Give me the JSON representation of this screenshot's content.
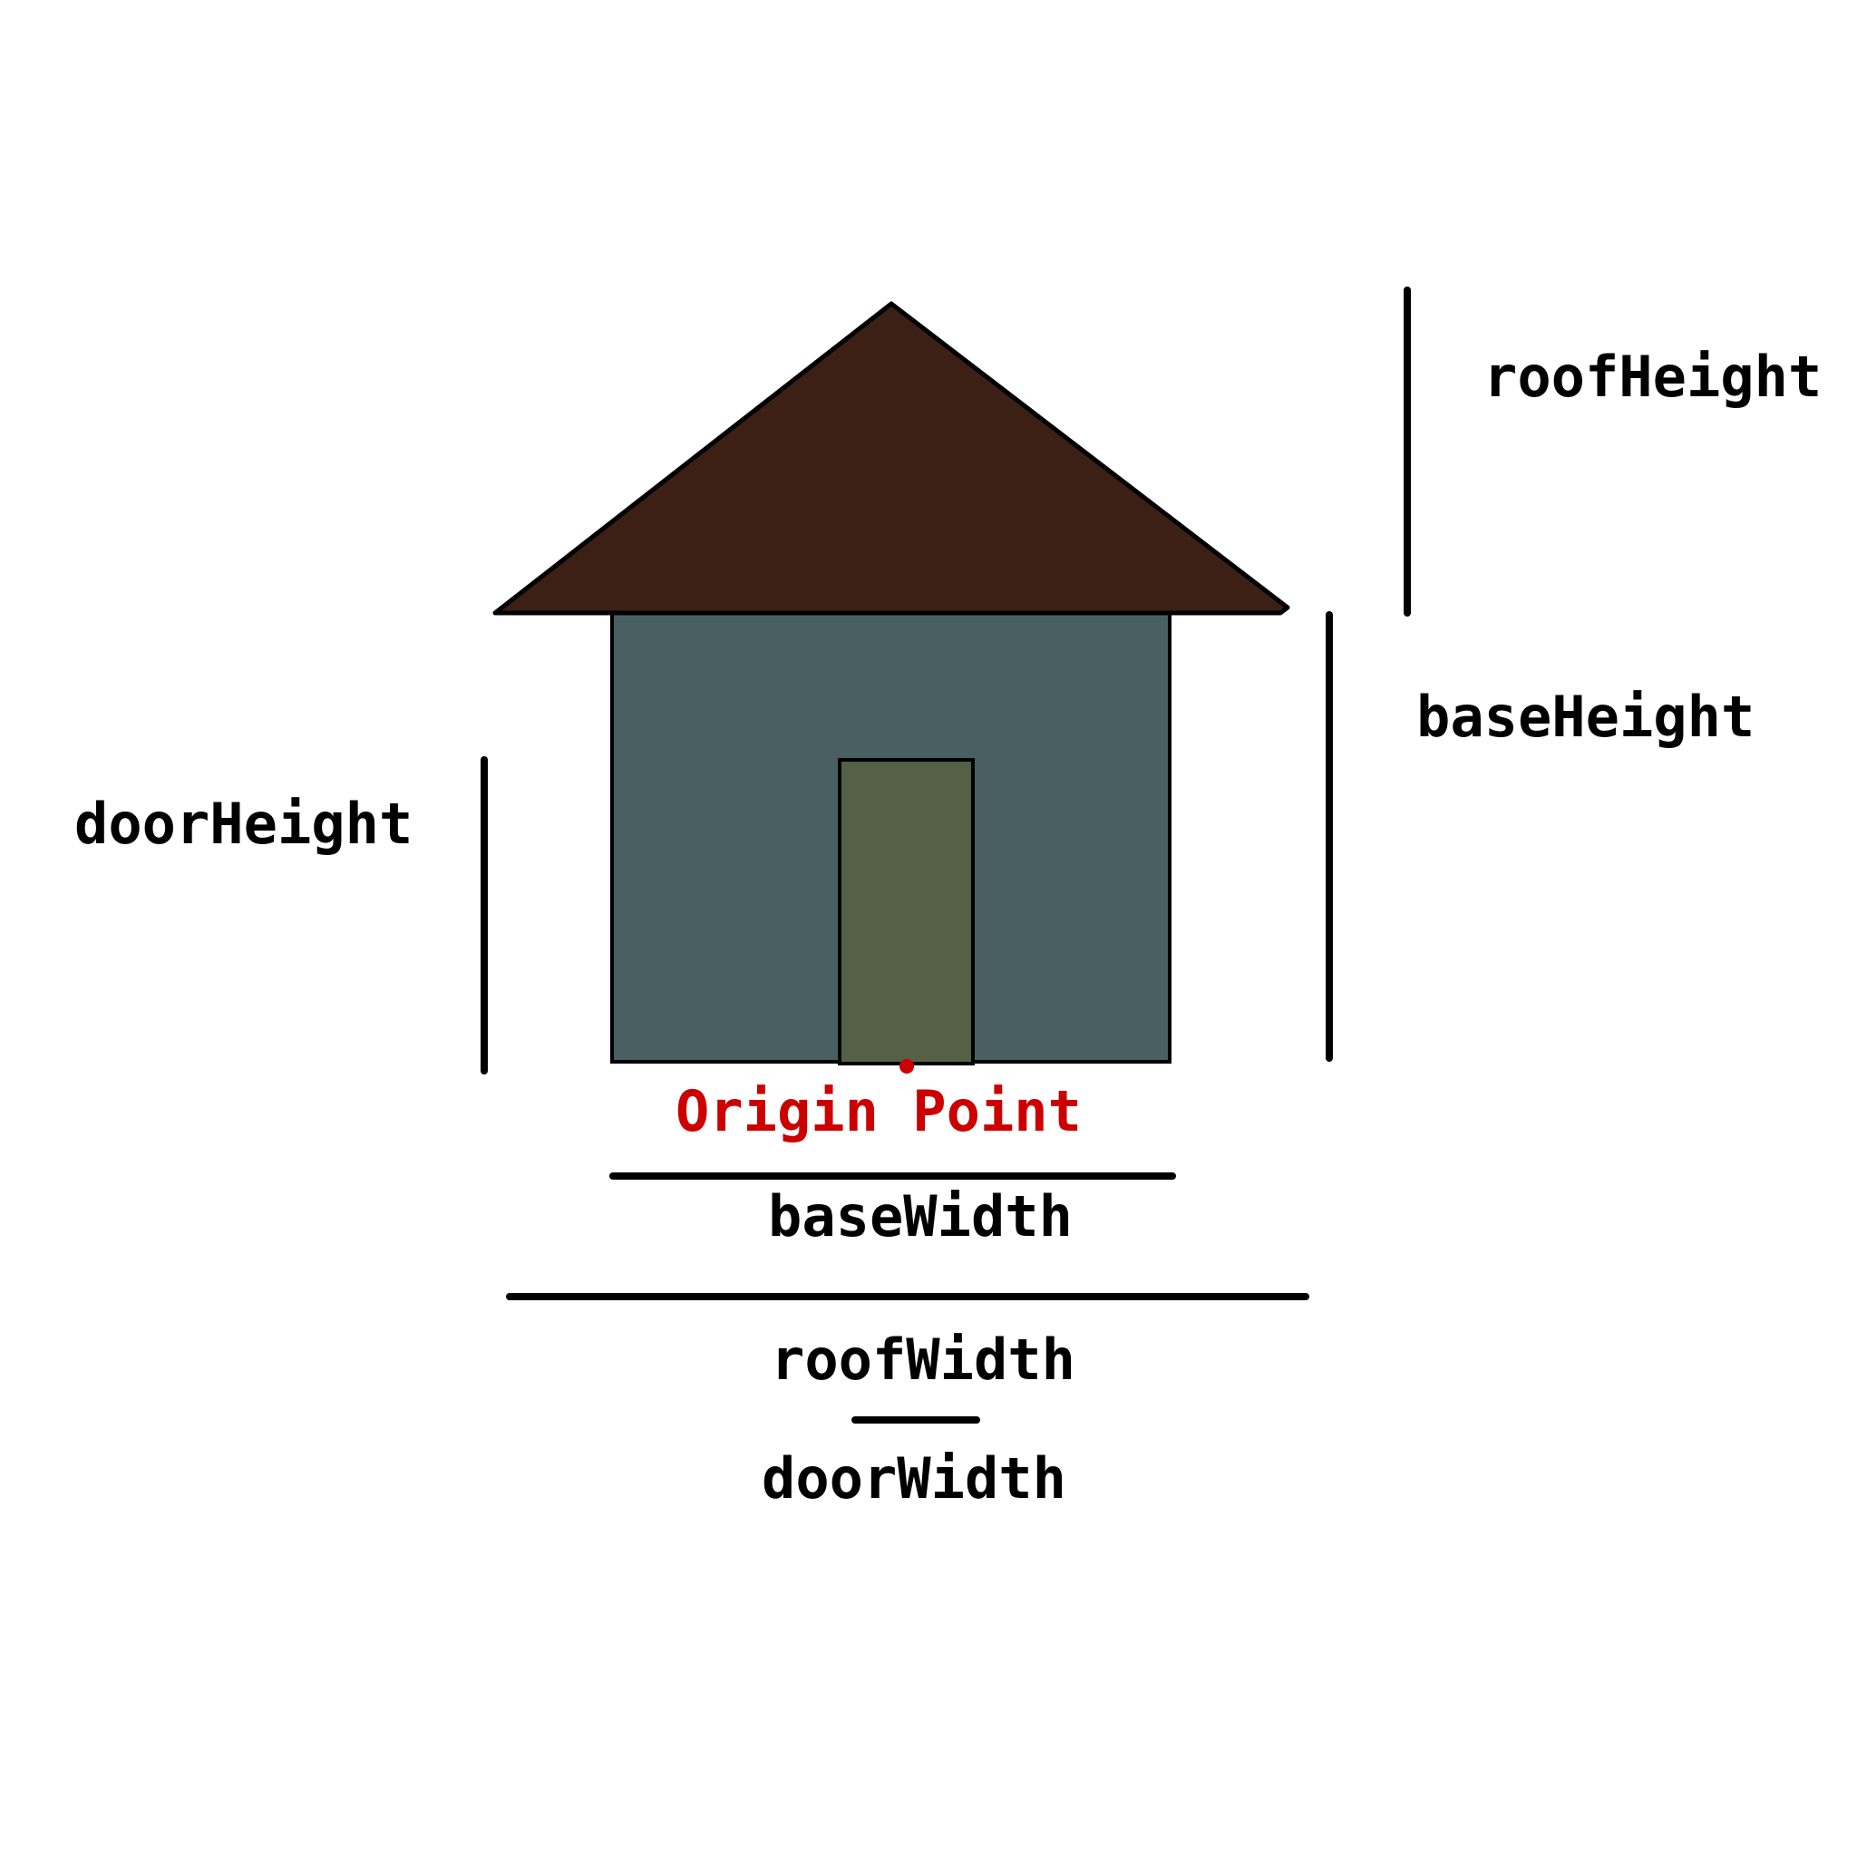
{
  "labels": {
    "roof_height": "roofHeight",
    "base_height": "baseHeight",
    "door_height": "doorHeight",
    "origin_point": "Origin Point",
    "base_width": "baseWidth",
    "roof_width": "roofWidth",
    "door_width": "doorWidth"
  },
  "colors": {
    "roof": "#3d2015",
    "base": "#486061",
    "door": "#556047",
    "outline": "#000000",
    "origin": "#cc0000",
    "text": "#000000",
    "background": "#ffffff"
  }
}
